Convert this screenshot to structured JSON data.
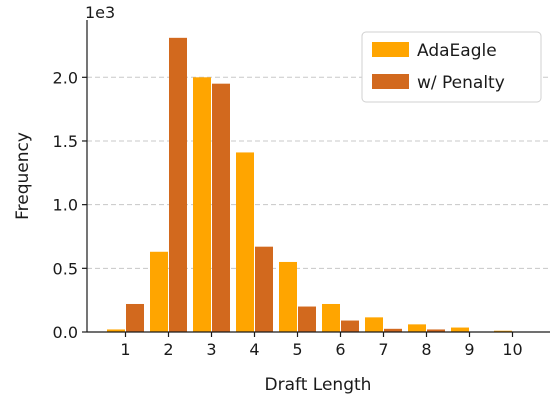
{
  "chart_data": {
    "type": "bar",
    "title": "",
    "xlabel": "Draft Length",
    "ylabel": "Frequency",
    "y_offset_label": "1e3",
    "categories": [
      "1",
      "2",
      "3",
      "4",
      "5",
      "6",
      "7",
      "8",
      "9",
      "10"
    ],
    "series": [
      {
        "name": "AdaEagle",
        "color": "#FFA500",
        "values": [
          20,
          630,
          2000,
          1410,
          550,
          220,
          115,
          60,
          35,
          10
        ]
      },
      {
        "name": "w/ Penalty",
        "color": "#D2691E",
        "values": [
          220,
          2310,
          1950,
          670,
          200,
          90,
          25,
          20,
          0,
          0
        ]
      }
    ],
    "ylim": [
      0,
      2450
    ],
    "yticks": [
      0,
      500,
      1000,
      1500,
      2000
    ],
    "ytick_labels": [
      "0.0",
      "0.5",
      "1.0",
      "1.5",
      "2.0"
    ],
    "grid": "horizontal dashed",
    "legend_position": "top-right"
  }
}
